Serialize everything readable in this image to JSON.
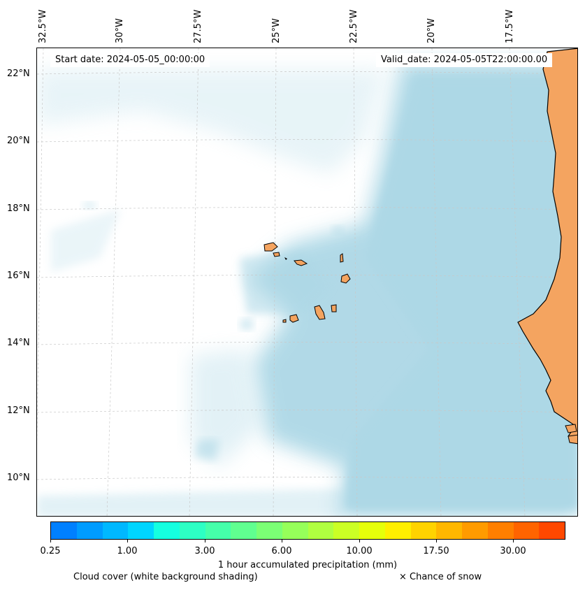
{
  "header": {
    "start_date": "Start date: 2024-05-05_00:00:00",
    "valid_date": "Valid_date: 2024-05-05T22:00:00.00"
  },
  "axes": {
    "lat_labels": [
      "22°N",
      "20°N",
      "18°N",
      "16°N",
      "14°N",
      "12°N",
      "10°N"
    ],
    "lon_labels": [
      "32.5°W",
      "30°W",
      "27.5°W",
      "25°W",
      "22.5°W",
      "20°W",
      "17.5°W"
    ]
  },
  "colorbar": {
    "title": "1 hour accumulated precipitation (mm)",
    "ticks": [
      "0.25",
      "1.00",
      "3.00",
      "6.00",
      "10.00",
      "17.50",
      "30.00"
    ],
    "colors": [
      "#0080ff",
      "#009cff",
      "#00b8ff",
      "#00d5ff",
      "#15ffe0",
      "#2dffc4",
      "#45ffaa",
      "#60ff90",
      "#7bff75",
      "#96ff5a",
      "#b0ff40",
      "#cbff25",
      "#e6ff0a",
      "#ffef00",
      "#ffd300",
      "#ffb700",
      "#ff9b00",
      "#ff7f00",
      "#ff6400",
      "#ff4800"
    ]
  },
  "legend": {
    "cloud_cover": "Cloud cover (white background shading)",
    "snow": "× Chance of snow"
  },
  "colors": {
    "land": "#f4a460",
    "cloud": "#add8e6",
    "ocean": "#ffffff"
  }
}
